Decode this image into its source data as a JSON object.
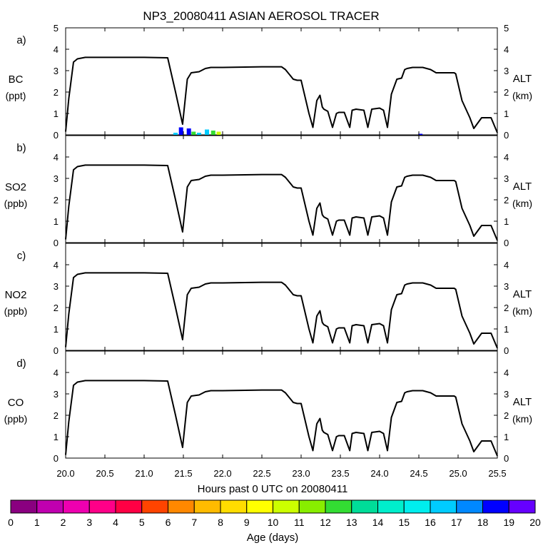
{
  "title": "NP3_20080411 ASIAN AEROSOL TRACER",
  "xlabel": "Hours past 0 UTC on 20080411",
  "x_ticks": [
    "20.0",
    "20.5",
    "21.0",
    "21.5",
    "22.0",
    "22.5",
    "23.0",
    "23.5",
    "24.0",
    "24.5",
    "25.0",
    "25.5"
  ],
  "colorbar": {
    "label": "Age (days)",
    "ticks": [
      "0",
      "1",
      "2",
      "3",
      "4",
      "5",
      "6",
      "7",
      "8",
      "9",
      "10",
      "11",
      "12",
      "13",
      "14",
      "15",
      "16",
      "17",
      "18",
      "19",
      "20"
    ],
    "colors": [
      "#8a0080",
      "#c000b0",
      "#ee00b0",
      "#ff0088",
      "#ff0044",
      "#ff4400",
      "#ff8800",
      "#ffbb00",
      "#ffdd00",
      "#ffff00",
      "#ccff00",
      "#88ee00",
      "#33dd33",
      "#00dd99",
      "#00eecc",
      "#00eeee",
      "#00ccff",
      "#0088ff",
      "#0000ff",
      "#6600ff"
    ]
  },
  "chart_data": [
    {
      "type": "line",
      "panel": "a)",
      "ylabel": "BC",
      "yunits": "(ppt)",
      "ylabel_right": "ALT",
      "yunits_right": "(km)",
      "xlim": [
        20.0,
        25.5
      ],
      "ylim": [
        0,
        5
      ],
      "y_ticks_left": [
        "0",
        "1",
        "2",
        "3",
        "4",
        "5"
      ],
      "y_ticks_right": [
        "0",
        "1",
        "2",
        "3",
        "4",
        "5"
      ],
      "tracer_bars": [
        {
          "x": 21.4,
          "value": 0.1,
          "color": "#00ccff"
        },
        {
          "x": 21.47,
          "value": 0.35,
          "color": "#0000ff"
        },
        {
          "x": 21.57,
          "value": 0.3,
          "color": "#0000ff"
        },
        {
          "x": 21.63,
          "value": 0.15,
          "color": "#33dd33"
        },
        {
          "x": 21.7,
          "value": 0.1,
          "color": "#00ccff"
        },
        {
          "x": 21.8,
          "value": 0.25,
          "color": "#00ccff"
        },
        {
          "x": 21.88,
          "value": 0.2,
          "color": "#33dd33"
        },
        {
          "x": 21.95,
          "value": 0.15,
          "color": "#ccff00"
        },
        {
          "x": 24.52,
          "value": 0.05,
          "color": "#0000ff"
        }
      ]
    },
    {
      "type": "line",
      "panel": "b)",
      "ylabel": "SO2",
      "yunits": "(ppb)",
      "ylabel_right": "ALT",
      "yunits_right": "(km)",
      "xlim": [
        20.0,
        25.5
      ],
      "ylim": [
        0,
        5
      ],
      "y_ticks_left": [
        "0",
        "1",
        "2",
        "3",
        "4"
      ],
      "y_ticks_right": [
        "0",
        "1",
        "2",
        "3",
        "4"
      ],
      "tracer_bars": []
    },
    {
      "type": "line",
      "panel": "c)",
      "ylabel": "NO2",
      "yunits": "(ppb)",
      "ylabel_right": "ALT",
      "yunits_right": "(km)",
      "xlim": [
        20.0,
        25.5
      ],
      "ylim": [
        0,
        5
      ],
      "y_ticks_left": [
        "0",
        "1",
        "2",
        "3",
        "4"
      ],
      "y_ticks_right": [
        "0",
        "1",
        "2",
        "3",
        "4"
      ],
      "tracer_bars": []
    },
    {
      "type": "line",
      "panel": "d)",
      "ylabel": "CO",
      "yunits": "(ppb)",
      "ylabel_right": "ALT",
      "yunits_right": "(km)",
      "xlim": [
        20.0,
        25.5
      ],
      "ylim": [
        0,
        5
      ],
      "y_ticks_left": [
        "0",
        "1",
        "2",
        "3",
        "4"
      ],
      "y_ticks_right": [
        "0",
        "1",
        "2",
        "3",
        "4"
      ],
      "tracer_bars": []
    }
  ],
  "altitude_track": {
    "name": "ALT (km)",
    "x": [
      20.0,
      20.04,
      20.1,
      20.15,
      20.25,
      21.0,
      21.3,
      21.4,
      21.49,
      21.55,
      21.6,
      21.7,
      21.78,
      21.85,
      22.0,
      22.5,
      22.75,
      22.8,
      22.9,
      22.95,
      23.0,
      23.1,
      23.15,
      23.2,
      23.24,
      23.27,
      23.29,
      23.34,
      23.4,
      23.45,
      23.48,
      23.55,
      23.62,
      23.65,
      23.7,
      23.8,
      23.85,
      23.9,
      24.0,
      24.05,
      24.1,
      24.15,
      24.22,
      24.28,
      24.32,
      24.35,
      24.42,
      24.55,
      24.65,
      24.72,
      24.95,
      24.97,
      25.05,
      25.15,
      25.2,
      25.3,
      25.42,
      25.5
    ],
    "values": [
      0.15,
      1.7,
      3.4,
      3.55,
      3.62,
      3.62,
      3.6,
      2.0,
      0.5,
      2.6,
      2.9,
      2.95,
      3.1,
      3.15,
      3.15,
      3.18,
      3.18,
      3.05,
      2.6,
      2.55,
      2.55,
      1.0,
      0.35,
      1.6,
      1.85,
      1.3,
      1.2,
      1.1,
      0.35,
      1.0,
      1.05,
      1.05,
      0.35,
      1.15,
      1.2,
      1.15,
      0.35,
      1.2,
      1.25,
      1.15,
      0.35,
      1.9,
      2.6,
      2.65,
      3.05,
      3.1,
      3.15,
      3.15,
      3.05,
      2.9,
      2.9,
      2.85,
      1.6,
      0.8,
      0.3,
      0.8,
      0.8,
      0.1
    ]
  }
}
